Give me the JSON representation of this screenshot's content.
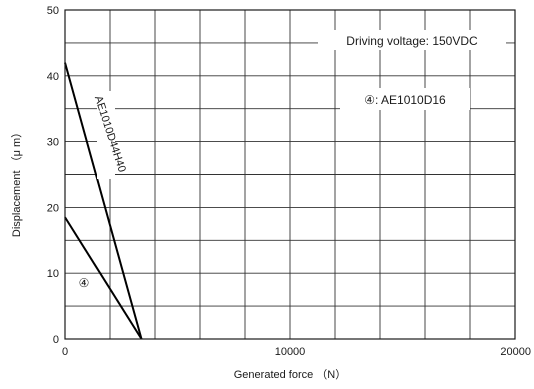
{
  "chart_data": {
    "type": "line",
    "title": "",
    "xlabel": "Generated force （N）",
    "ylabel": "Displacement （μ m）",
    "xlim": [
      0,
      20000
    ],
    "ylim": [
      0,
      50
    ],
    "x_ticks": [
      0,
      10000,
      20000
    ],
    "y_ticks": [
      0,
      10,
      20,
      30,
      40,
      50
    ],
    "x_grid_step": 2000,
    "y_grid_step": 5,
    "grid": true,
    "annotations": {
      "voltage": "Driving voltage: 150VDC",
      "legend_marker": "④: AE1010D16"
    },
    "series": [
      {
        "name": "AE1010D44H40",
        "x": [
          0,
          3400
        ],
        "y": [
          42,
          0
        ]
      },
      {
        "name": "④",
        "x": [
          0,
          3400
        ],
        "y": [
          18.5,
          0
        ]
      }
    ]
  }
}
